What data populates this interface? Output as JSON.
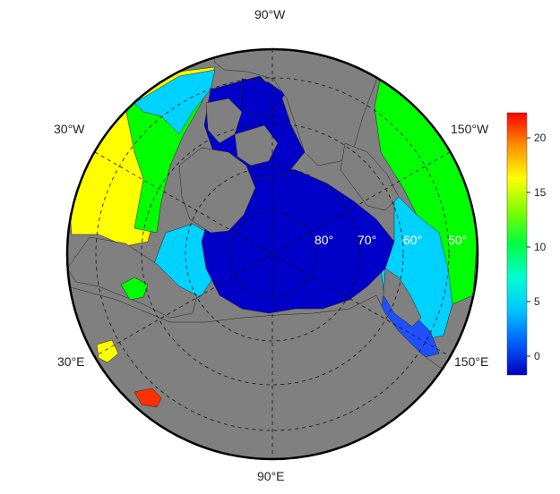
{
  "map": {
    "projection": "north-polar-stereographic",
    "outer_labels": {
      "top": "90°W",
      "bottom": "90°E",
      "upper_left": "30°W",
      "upper_right": "150°W",
      "lower_left": "30°E",
      "lower_right": "150°E"
    },
    "latitude_labels": [
      "80°",
      "70°",
      "60°",
      "50°"
    ],
    "colors": {
      "land": "#808080",
      "ice_core": "#0000c8",
      "ocean_cold": "#1e50ff",
      "ocean_cool": "#00d2ff",
      "ocean_mild": "#00e0a0",
      "ocean_warm": "#00ff00",
      "ocean_hot": "#ffff00",
      "gridline": "#111111"
    }
  },
  "colorbar": {
    "ticks": [
      "0",
      "5",
      "10",
      "15",
      "20"
    ],
    "min": -2,
    "max": 22,
    "colors": [
      "#0000c0",
      "#0060ff",
      "#00c8ff",
      "#00ffd0",
      "#00ff40",
      "#7fff00",
      "#ffff00",
      "#ff9000",
      "#ff0000"
    ]
  }
}
